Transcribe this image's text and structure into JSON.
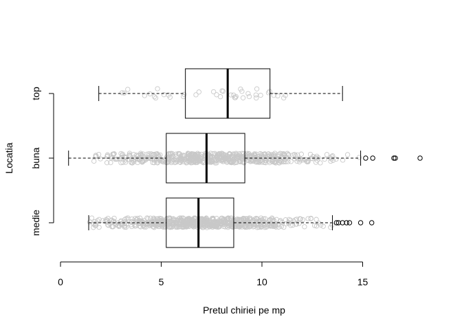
{
  "chart_data": {
    "type": "boxplot",
    "orientation": "horizontal",
    "title": "",
    "xlabel": "Pretul chiriei pe mp",
    "ylabel": "Locatia",
    "xlim": [
      0,
      18.4
    ],
    "x_ticks": [
      0,
      5,
      10,
      15
    ],
    "grid": false,
    "colors": {
      "box": "#000000",
      "jitter": "#c8c8c8",
      "outlier": "#000000",
      "background": "#ffffff"
    },
    "categories": [
      "medie",
      "buna",
      "top"
    ],
    "boxes": [
      {
        "name": "medie",
        "whisker_low": 1.4,
        "q1": 5.25,
        "median": 6.85,
        "q3": 8.6,
        "whisker_high": 13.5,
        "outliers": [
          13.7,
          13.8,
          14.0,
          14.2,
          14.35,
          14.9,
          15.45
        ],
        "jitter_count": 700,
        "jitter_range": [
          1.4,
          13.5
        ]
      },
      {
        "name": "buna",
        "whisker_low": 0.4,
        "q1": 5.25,
        "median": 7.25,
        "q3": 9.15,
        "whisker_high": 14.9,
        "outliers": [
          15.15,
          15.5,
          16.55,
          16.62,
          17.85
        ],
        "jitter_count": 600,
        "jitter_range": [
          1.6,
          14.9
        ]
      },
      {
        "name": "top",
        "whisker_low": 1.9,
        "q1": 6.2,
        "median": 8.3,
        "q3": 10.4,
        "whisker_high": 14.0,
        "outliers": [],
        "jitter_count": 40,
        "jitter_range": [
          2.8,
          11.8
        ]
      }
    ]
  }
}
